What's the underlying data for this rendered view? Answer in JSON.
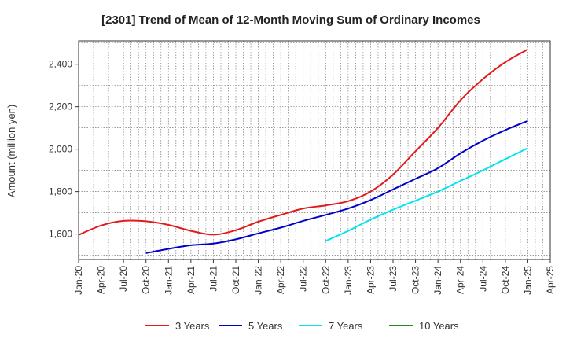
{
  "chart_data": {
    "type": "line",
    "title": "[2301]  Trend of Mean of 12-Month Moving Sum of Ordinary Incomes",
    "xlabel": "",
    "ylabel": "Amount (million yen)",
    "ylim": [
      1480,
      2510
    ],
    "yticks": [
      1600,
      1800,
      2000,
      2200,
      2400
    ],
    "ytick_labels": [
      "1,600",
      "1,800",
      "2,000",
      "2,200",
      "2,400"
    ],
    "grid": true,
    "legend_position": "bottom",
    "categories": [
      "Jan-20",
      "Apr-20",
      "Jul-20",
      "Oct-20",
      "Jan-21",
      "Apr-21",
      "Jul-21",
      "Oct-21",
      "Jan-22",
      "Apr-22",
      "Jul-22",
      "Oct-22",
      "Jan-23",
      "Apr-23",
      "Jul-23",
      "Oct-23",
      "Jan-24",
      "Apr-24",
      "Jul-24",
      "Oct-24",
      "Jan-25",
      "Apr-25"
    ],
    "series": [
      {
        "name": "3 Years",
        "color": "#e31a1c",
        "values": [
          1596,
          1640,
          1662,
          1660,
          1643,
          1615,
          1597,
          1618,
          1658,
          1690,
          1720,
          1735,
          1755,
          1800,
          1880,
          1990,
          2100,
          2230,
          2330,
          2410,
          2470,
          null
        ]
      },
      {
        "name": "5 Years",
        "color": "#0000cc",
        "values": [
          null,
          null,
          null,
          1510,
          1530,
          1547,
          1555,
          1575,
          1603,
          1630,
          1662,
          1690,
          1720,
          1760,
          1810,
          1860,
          1910,
          1980,
          2040,
          2090,
          2133,
          null
        ]
      },
      {
        "name": "7 Years",
        "color": "#00e5ee",
        "values": [
          null,
          null,
          null,
          null,
          null,
          null,
          null,
          null,
          null,
          null,
          null,
          1567,
          1615,
          1668,
          1715,
          1757,
          1800,
          1850,
          1900,
          1953,
          2005,
          null
        ]
      },
      {
        "name": "10 Years",
        "color": "#228b22",
        "values": [
          null,
          null,
          null,
          null,
          null,
          null,
          null,
          null,
          null,
          null,
          null,
          null,
          null,
          null,
          null,
          null,
          null,
          null,
          null,
          null,
          null,
          null
        ]
      }
    ]
  }
}
